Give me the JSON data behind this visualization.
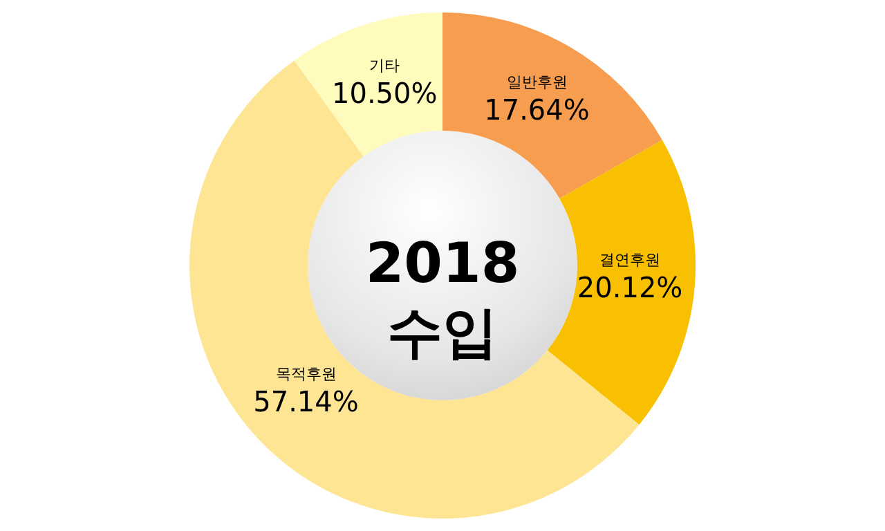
{
  "chart_data": {
    "type": "donut",
    "title": "2018 수입",
    "categories": [
      "일반후원",
      "결연후원",
      "목적후원",
      "기타"
    ],
    "values": [
      17.64,
      20.12,
      57.14,
      10.5
    ],
    "colors": [
      "#f79d4f",
      "#f8c000",
      "#fde594",
      "#fefbbc"
    ],
    "value_labels": [
      "17.64%",
      "20.12%",
      "57.14%",
      "10.50%"
    ]
  }
}
